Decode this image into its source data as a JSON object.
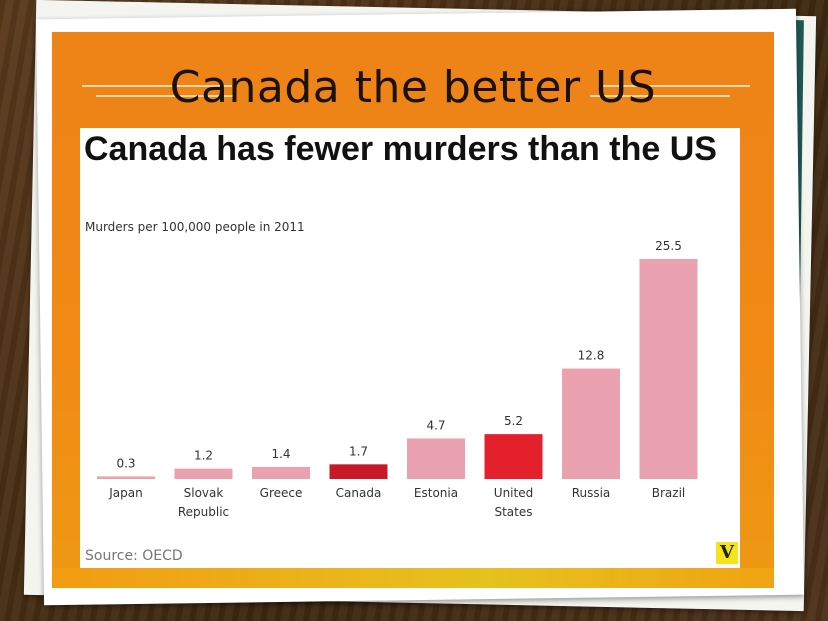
{
  "slide": {
    "title": "Canada the better US"
  },
  "chart_data": {
    "type": "bar",
    "title": "Canada has fewer murders than the US",
    "subtitle": "Murders per 100,000 people in 2011",
    "source": "Source: OECD",
    "logo_text": "V",
    "categories": [
      [
        "Japan"
      ],
      [
        "Slovak",
        "Republic"
      ],
      [
        "Greece"
      ],
      [
        "Canada"
      ],
      [
        "Estonia"
      ],
      [
        "United",
        "States"
      ],
      [
        "Russia"
      ],
      [
        "Brazil"
      ]
    ],
    "values": [
      0.3,
      1.2,
      1.4,
      1.7,
      4.7,
      5.2,
      12.8,
      25.5
    ],
    "value_labels": [
      "0.3",
      "1.2",
      "1.4",
      "1.7",
      "4.7",
      "5.2",
      "12.8",
      "25.5"
    ],
    "highlight": [
      false,
      false,
      false,
      true,
      false,
      true,
      false,
      false
    ],
    "colors": {
      "default_bar": "#eaa1b0",
      "canada_bar": "#c8192a",
      "us_bar": "#e4202c",
      "slide_orange": "#ef8617"
    },
    "ylim": [
      0,
      25.5
    ],
    "grid": false,
    "legend": "none"
  }
}
